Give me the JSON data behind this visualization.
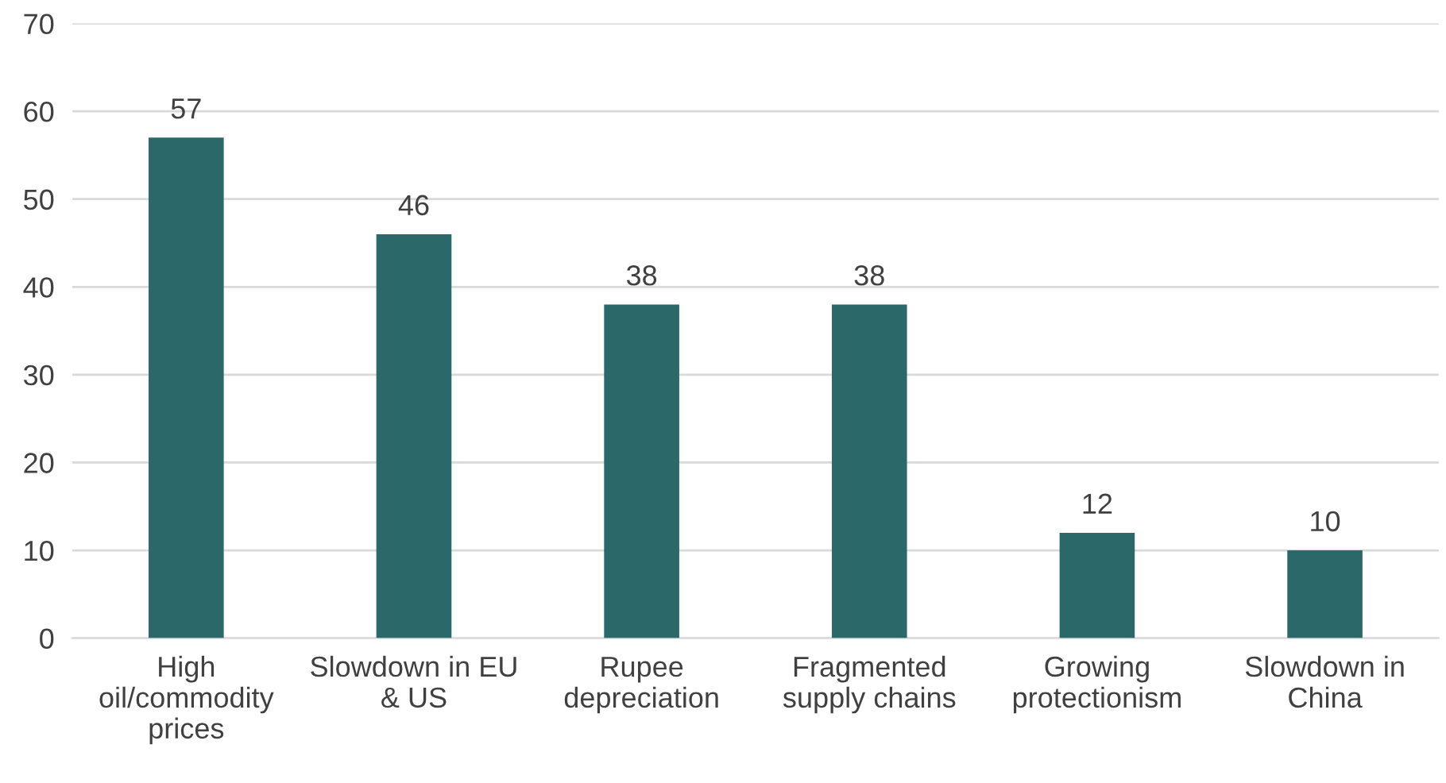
{
  "chart_data": {
    "type": "bar",
    "categories": [
      "High\noil/commodity\nprices",
      "Slowdown in EU\n& US",
      "Rupee\ndepreciation",
      "Fragmented\nsupply chains",
      "Growing\nprotectionism",
      "Slowdown in\nChina"
    ],
    "values": [
      57,
      46,
      38,
      38,
      12,
      10
    ],
    "color": "#2a6869",
    "ylim": [
      0,
      70
    ],
    "yticks": [
      0,
      10,
      20,
      30,
      40,
      50,
      60,
      70
    ],
    "grid": "y",
    "data_labels": true,
    "legend": false
  }
}
